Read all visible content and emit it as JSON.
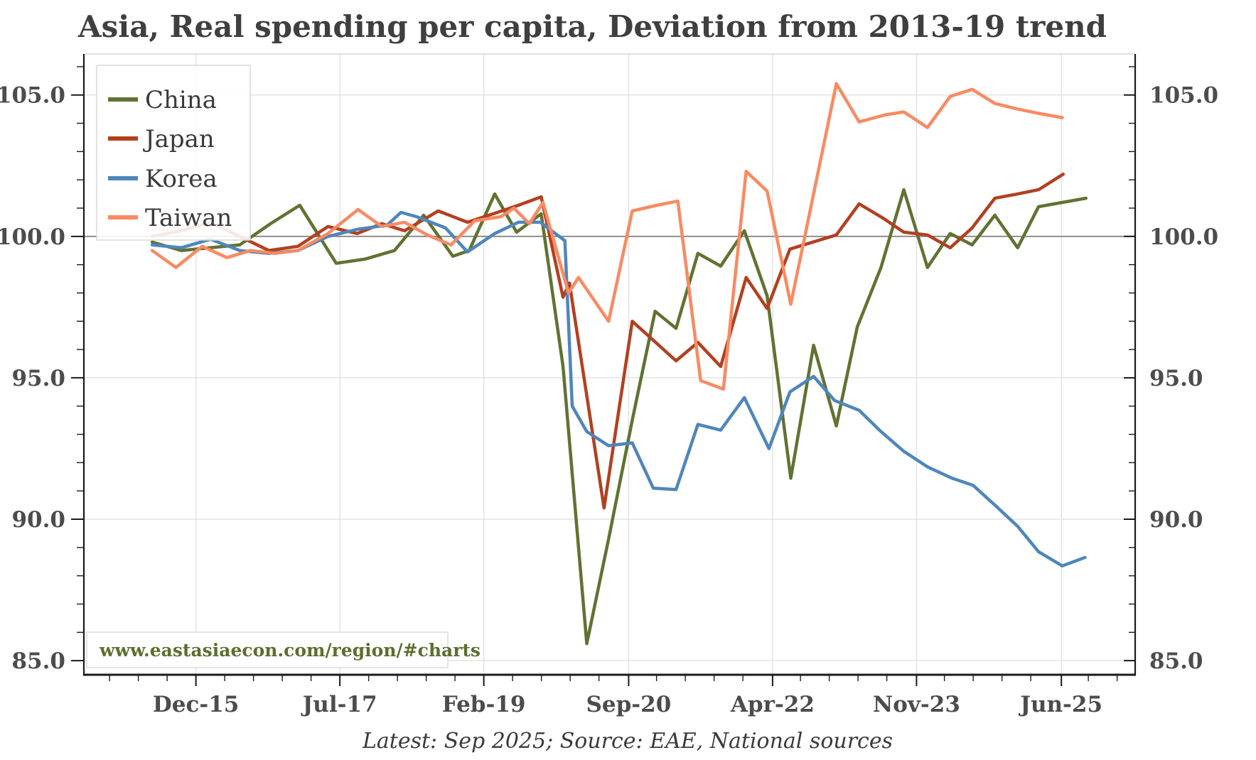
{
  "header": {
    "title": "Asia, Real spending per capita, Deviation from 2013-19 trend"
  },
  "footer": {
    "text": "Latest: Sep 2025; Source: EAE, National sources"
  },
  "watermark": {
    "text": "www.eastasiaecon.com/region/#charts"
  },
  "colors": {
    "background": "#ffffff",
    "grid": "#e3e3e3",
    "reference_line": "#878787",
    "spine": "#1a1a1a",
    "top_spine": "#d5d5d5",
    "title_text": "#3f3f3f",
    "tick_text": "#4c4c4c",
    "watermark_text": "#5c6e2e"
  },
  "chart_data": {
    "type": "line",
    "title": "Asia, Real spending per capita, Deviation from 2013-19 trend",
    "xlabel": "",
    "ylabel": "",
    "grid": true,
    "legend_position": "upper left",
    "x_tick_labels": [
      "Dec-15",
      "Jul-17",
      "Feb-19",
      "Sep-20",
      "Apr-22",
      "Nov-23",
      "Jun-25"
    ],
    "x_tick_values": [
      2015.92,
      2017.5,
      2019.08,
      2020.67,
      2022.25,
      2023.83,
      2025.42
    ],
    "x_minor_step": 0.3167,
    "y_ticks": [
      85,
      90,
      95,
      100,
      105
    ],
    "y_tick_labels": [
      "85.0",
      "90.0",
      "95.0",
      "100.0",
      "105.0"
    ],
    "y_minor_step": 1,
    "xlim": [
      2014.69,
      2026.23
    ],
    "ylim": [
      84.5,
      106.45
    ],
    "reference_line": 100,
    "y_axis_right": true,
    "series": [
      {
        "name": "China",
        "color": "#617232",
        "points": [
          [
            2015.44,
            99.8
          ],
          [
            2015.76,
            99.5
          ],
          [
            2016.08,
            99.6
          ],
          [
            2016.4,
            99.7
          ],
          [
            2016.74,
            100.45
          ],
          [
            2017.06,
            101.1
          ],
          [
            2017.46,
            99.05
          ],
          [
            2017.78,
            99.2
          ],
          [
            2018.1,
            99.5
          ],
          [
            2018.42,
            100.75
          ],
          [
            2018.74,
            99.3
          ],
          [
            2018.92,
            99.5
          ],
          [
            2019.2,
            101.5
          ],
          [
            2019.44,
            100.15
          ],
          [
            2019.71,
            100.8
          ],
          [
            2019.95,
            95.4
          ],
          [
            2020.21,
            85.6
          ],
          [
            2020.45,
            89.3
          ],
          [
            2020.71,
            93.5
          ],
          [
            2020.96,
            97.35
          ],
          [
            2021.19,
            96.75
          ],
          [
            2021.43,
            99.4
          ],
          [
            2021.68,
            98.95
          ],
          [
            2021.94,
            100.2
          ],
          [
            2022.19,
            97.9
          ],
          [
            2022.45,
            91.45
          ],
          [
            2022.7,
            96.15
          ],
          [
            2022.95,
            93.3
          ],
          [
            2023.18,
            96.8
          ],
          [
            2023.44,
            98.9
          ],
          [
            2023.69,
            101.65
          ],
          [
            2023.95,
            98.9
          ],
          [
            2024.2,
            100.1
          ],
          [
            2024.44,
            99.7
          ],
          [
            2024.69,
            100.75
          ],
          [
            2024.94,
            99.6
          ],
          [
            2025.17,
            101.05
          ],
          [
            2025.43,
            101.2
          ],
          [
            2025.69,
            101.35
          ]
        ]
      },
      {
        "name": "Japan",
        "color": "#b24020",
        "points": [
          [
            2015.44,
            100.0
          ],
          [
            2015.76,
            100.2
          ],
          [
            2016.08,
            100.5
          ],
          [
            2016.4,
            100.0
          ],
          [
            2016.72,
            99.5
          ],
          [
            2017.04,
            99.65
          ],
          [
            2017.37,
            100.35
          ],
          [
            2017.69,
            100.1
          ],
          [
            2017.96,
            100.45
          ],
          [
            2018.21,
            100.2
          ],
          [
            2018.58,
            100.9
          ],
          [
            2018.9,
            100.5
          ],
          [
            2019.23,
            100.85
          ],
          [
            2019.46,
            101.1
          ],
          [
            2019.71,
            101.4
          ],
          [
            2019.95,
            97.85
          ],
          [
            2020.02,
            98.35
          ],
          [
            2020.4,
            90.4
          ],
          [
            2020.71,
            97.0
          ],
          [
            2021.19,
            95.6
          ],
          [
            2021.43,
            96.25
          ],
          [
            2021.68,
            95.4
          ],
          [
            2021.96,
            98.55
          ],
          [
            2022.19,
            97.45
          ],
          [
            2022.44,
            99.55
          ],
          [
            2022.95,
            100.05
          ],
          [
            2023.2,
            101.15
          ],
          [
            2023.46,
            100.65
          ],
          [
            2023.69,
            100.15
          ],
          [
            2023.95,
            100.05
          ],
          [
            2024.2,
            99.6
          ],
          [
            2024.44,
            100.3
          ],
          [
            2024.69,
            101.35
          ],
          [
            2024.94,
            101.5
          ],
          [
            2025.17,
            101.65
          ],
          [
            2025.44,
            102.2
          ]
        ]
      },
      {
        "name": "Korea",
        "color": "#4f86bb",
        "points": [
          [
            2015.44,
            99.7
          ],
          [
            2015.76,
            99.6
          ],
          [
            2016.08,
            99.9
          ],
          [
            2016.4,
            99.5
          ],
          [
            2016.72,
            99.4
          ],
          [
            2017.04,
            99.5
          ],
          [
            2017.37,
            100.0
          ],
          [
            2017.69,
            100.25
          ],
          [
            2018.02,
            100.4
          ],
          [
            2018.17,
            100.85
          ],
          [
            2018.34,
            100.7
          ],
          [
            2018.66,
            100.3
          ],
          [
            2018.9,
            99.45
          ],
          [
            2019.2,
            100.1
          ],
          [
            2019.46,
            100.5
          ],
          [
            2019.7,
            100.5
          ],
          [
            2019.97,
            99.85
          ],
          [
            2020.05,
            94.0
          ],
          [
            2020.21,
            93.1
          ],
          [
            2020.45,
            92.6
          ],
          [
            2020.71,
            92.7
          ],
          [
            2020.94,
            91.1
          ],
          [
            2021.19,
            91.05
          ],
          [
            2021.43,
            93.35
          ],
          [
            2021.68,
            93.15
          ],
          [
            2021.94,
            94.3
          ],
          [
            2022.21,
            92.5
          ],
          [
            2022.44,
            94.5
          ],
          [
            2022.7,
            95.05
          ],
          [
            2022.93,
            94.2
          ],
          [
            2023.2,
            93.85
          ],
          [
            2023.44,
            93.1
          ],
          [
            2023.69,
            92.4
          ],
          [
            2023.95,
            91.85
          ],
          [
            2024.22,
            91.45
          ],
          [
            2024.45,
            91.2
          ],
          [
            2024.69,
            90.5
          ],
          [
            2024.94,
            89.75
          ],
          [
            2025.17,
            88.85
          ],
          [
            2025.43,
            88.35
          ],
          [
            2025.68,
            88.65
          ]
        ]
      },
      {
        "name": "Taiwan",
        "color": "#f98a62",
        "points": [
          [
            2015.44,
            99.5
          ],
          [
            2015.7,
            98.9
          ],
          [
            2015.99,
            99.65
          ],
          [
            2016.26,
            99.25
          ],
          [
            2016.52,
            99.5
          ],
          [
            2016.79,
            99.4
          ],
          [
            2017.04,
            99.5
          ],
          [
            2017.37,
            100.1
          ],
          [
            2017.7,
            100.95
          ],
          [
            2017.96,
            100.35
          ],
          [
            2018.21,
            100.5
          ],
          [
            2018.46,
            100.05
          ],
          [
            2018.72,
            99.7
          ],
          [
            2018.98,
            100.55
          ],
          [
            2019.27,
            100.7
          ],
          [
            2019.41,
            101.0
          ],
          [
            2019.58,
            100.45
          ],
          [
            2019.73,
            101.2
          ],
          [
            2020.01,
            98.0
          ],
          [
            2020.12,
            98.55
          ],
          [
            2020.45,
            97.0
          ],
          [
            2020.71,
            100.9
          ],
          [
            2020.98,
            101.1
          ],
          [
            2021.21,
            101.25
          ],
          [
            2021.46,
            94.9
          ],
          [
            2021.71,
            94.6
          ],
          [
            2021.96,
            102.3
          ],
          [
            2022.19,
            101.6
          ],
          [
            2022.45,
            97.6
          ],
          [
            2022.95,
            105.4
          ],
          [
            2023.2,
            104.05
          ],
          [
            2023.49,
            104.3
          ],
          [
            2023.69,
            104.4
          ],
          [
            2023.95,
            103.85
          ],
          [
            2024.2,
            104.95
          ],
          [
            2024.44,
            105.2
          ],
          [
            2024.69,
            104.7
          ],
          [
            2024.94,
            104.5
          ],
          [
            2025.17,
            104.35
          ],
          [
            2025.43,
            104.2
          ]
        ]
      }
    ]
  }
}
